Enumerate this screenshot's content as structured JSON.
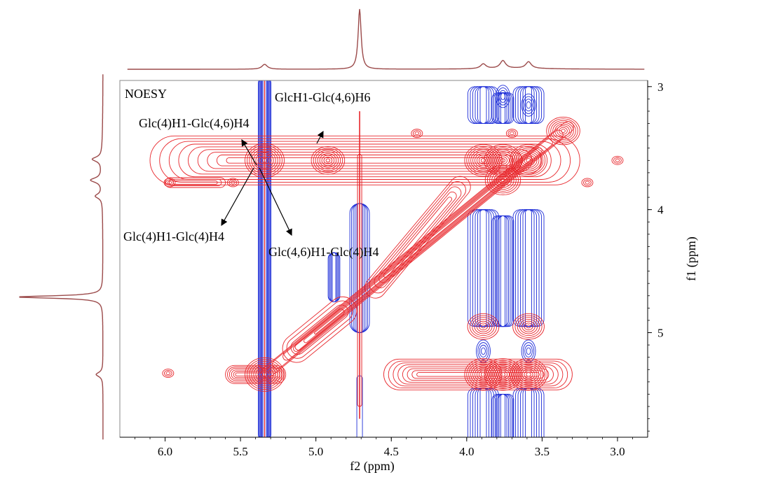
{
  "chart_data": {
    "type": "heatmap",
    "subtype": "2d-nmr-contour",
    "experiment_label": "NOESY",
    "xlabel": "f2 (ppm)",
    "ylabel": "f1 (ppm)",
    "xlim": [
      6.3,
      2.8
    ],
    "ylim": [
      2.95,
      5.85
    ],
    "x_ticks": [
      6.0,
      5.5,
      5.0,
      4.5,
      4.0,
      3.5,
      3.0
    ],
    "x_tick_labels": [
      "6.0",
      "5.5",
      "5.0",
      "4.5",
      "4.0",
      "3.5",
      "3.0"
    ],
    "y_ticks": [
      3,
      4,
      5
    ],
    "y_tick_labels": [
      "3",
      "4",
      "5"
    ],
    "colors": {
      "positive": "#e8262b",
      "negative": "#1f2fd8",
      "projection": "#9b4a4a",
      "frame": "#888888"
    },
    "projection_peaks": [
      {
        "ppm": 5.34,
        "height": 0.08
      },
      {
        "ppm": 4.71,
        "height": 1.0
      },
      {
        "ppm": 3.89,
        "height": 0.08
      },
      {
        "ppm": 3.76,
        "height": 0.13
      },
      {
        "ppm": 3.59,
        "height": 0.11
      }
    ],
    "cross_peaks": [
      {
        "f2": 5.34,
        "f1": 3.6,
        "sign": "positive",
        "strength": 1.0
      },
      {
        "f2": 5.34,
        "f1": 5.34,
        "sign": "positive",
        "strength": 1.0
      },
      {
        "f2": 4.92,
        "f1": 3.6,
        "sign": "positive",
        "strength": 0.7
      },
      {
        "f2": 3.89,
        "f1": 3.6,
        "sign": "positive",
        "strength": 0.9
      },
      {
        "f2": 3.76,
        "f1": 3.6,
        "sign": "positive",
        "strength": 0.9
      },
      {
        "f2": 3.59,
        "f1": 3.6,
        "sign": "positive",
        "strength": 0.9
      },
      {
        "f2": 3.89,
        "f1": 5.34,
        "sign": "positive",
        "strength": 0.9
      },
      {
        "f2": 3.76,
        "f1": 5.34,
        "sign": "positive",
        "strength": 0.9
      },
      {
        "f2": 3.59,
        "f1": 5.34,
        "sign": "positive",
        "strength": 0.9
      },
      {
        "f2": 3.89,
        "f1": 4.95,
        "sign": "positive",
        "strength": 0.6
      },
      {
        "f2": 3.59,
        "f1": 4.95,
        "sign": "positive",
        "strength": 0.6
      },
      {
        "f2": 3.76,
        "f1": 3.76,
        "sign": "positive",
        "strength": 0.8
      },
      {
        "f2": 3.36,
        "f1": 3.36,
        "sign": "positive",
        "strength": 0.7
      }
    ],
    "annotations": [
      {
        "text": "GlcH1-Glc(4,6)H6"
      },
      {
        "text": "Glc(4)H1-Glc(4,6)H4"
      },
      {
        "text": "Glc(4)H1-Glc(4)H4"
      },
      {
        "text": "Glc(4,6)H1-Glc(4)H4"
      }
    ]
  }
}
